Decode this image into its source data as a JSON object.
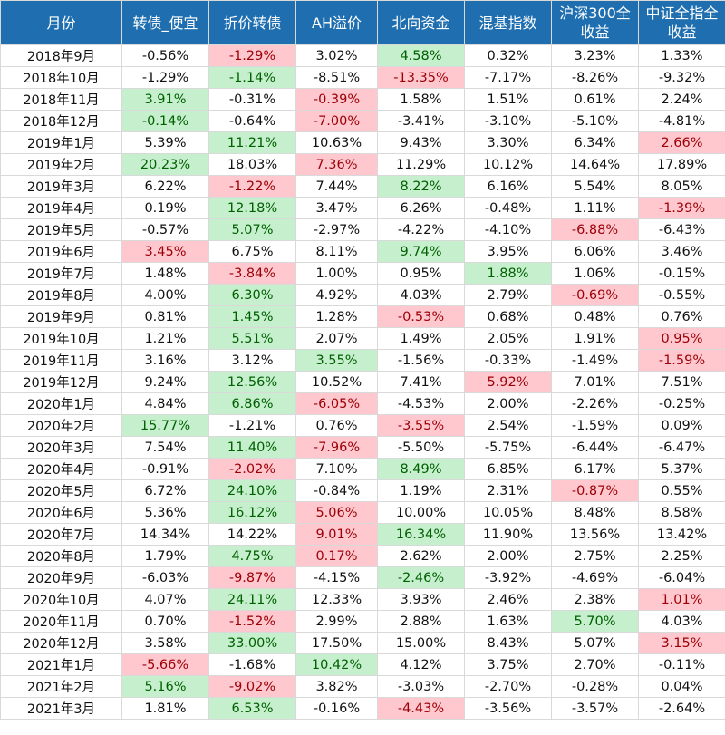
{
  "colors": {
    "header_bg": "#1f6fb0",
    "header_text": "#ffffff",
    "green_fill": "#c6efce",
    "green_text": "#006100",
    "red_fill": "#ffc7ce",
    "red_text": "#9c0006",
    "grid": "#d9d9d9"
  },
  "table": {
    "headers": [
      "月份",
      "转债_便宜",
      "折价转债",
      "AH溢价",
      "北向资金",
      "混基指数",
      "沪深300全收益",
      "中证全指全收益"
    ],
    "rows": [
      {
        "month": "2018年9月",
        "values": [
          "-0.56%",
          "-1.29%",
          "3.02%",
          "4.58%",
          "0.32%",
          "3.23%",
          "1.33%"
        ],
        "highlight": [
          "",
          "red",
          "",
          "green",
          "",
          "",
          ""
        ]
      },
      {
        "month": "2018年10月",
        "values": [
          "-1.29%",
          "-1.14%",
          "-8.51%",
          "-13.35%",
          "-7.17%",
          "-8.26%",
          "-9.32%"
        ],
        "highlight": [
          "",
          "green",
          "",
          "red",
          "",
          "",
          ""
        ]
      },
      {
        "month": "2018年11月",
        "values": [
          "3.91%",
          "-0.31%",
          "-0.39%",
          "1.58%",
          "1.51%",
          "0.61%",
          "2.24%"
        ],
        "highlight": [
          "green",
          "",
          "red",
          "",
          "",
          "",
          ""
        ]
      },
      {
        "month": "2018年12月",
        "values": [
          "-0.14%",
          "-0.64%",
          "-7.00%",
          "-3.41%",
          "-3.10%",
          "-5.10%",
          "-4.81%"
        ],
        "highlight": [
          "green",
          "",
          "red",
          "",
          "",
          "",
          ""
        ]
      },
      {
        "month": "2019年1月",
        "values": [
          "5.39%",
          "11.21%",
          "10.63%",
          "9.43%",
          "3.30%",
          "6.34%",
          "2.66%"
        ],
        "highlight": [
          "",
          "green",
          "",
          "",
          "",
          "",
          "red"
        ]
      },
      {
        "month": "2019年2月",
        "values": [
          "20.23%",
          "18.03%",
          "7.36%",
          "11.29%",
          "10.12%",
          "14.64%",
          "17.89%"
        ],
        "highlight": [
          "green",
          "",
          "red",
          "",
          "",
          "",
          ""
        ]
      },
      {
        "month": "2019年3月",
        "values": [
          "6.22%",
          "-1.22%",
          "7.44%",
          "8.22%",
          "6.16%",
          "5.54%",
          "8.05%"
        ],
        "highlight": [
          "",
          "red",
          "",
          "green",
          "",
          "",
          ""
        ]
      },
      {
        "month": "2019年4月",
        "values": [
          "0.19%",
          "12.18%",
          "3.47%",
          "6.26%",
          "-0.48%",
          "1.11%",
          "-1.39%"
        ],
        "highlight": [
          "",
          "green",
          "",
          "",
          "",
          "",
          "red"
        ]
      },
      {
        "month": "2019年5月",
        "values": [
          "-0.57%",
          "5.07%",
          "-2.97%",
          "-4.22%",
          "-4.10%",
          "-6.88%",
          "-6.43%"
        ],
        "highlight": [
          "",
          "green",
          "",
          "",
          "",
          "red",
          ""
        ]
      },
      {
        "month": "2019年6月",
        "values": [
          "3.45%",
          "6.75%",
          "8.11%",
          "9.74%",
          "3.95%",
          "6.06%",
          "3.46%"
        ],
        "highlight": [
          "red",
          "",
          "",
          "green",
          "",
          "",
          ""
        ]
      },
      {
        "month": "2019年7月",
        "values": [
          "1.48%",
          "-3.84%",
          "1.00%",
          "0.95%",
          "1.88%",
          "1.06%",
          "-0.15%"
        ],
        "highlight": [
          "",
          "red",
          "",
          "",
          "green",
          "",
          ""
        ]
      },
      {
        "month": "2019年8月",
        "values": [
          "4.00%",
          "6.30%",
          "4.92%",
          "4.03%",
          "2.79%",
          "-0.69%",
          "-0.55%"
        ],
        "highlight": [
          "",
          "green",
          "",
          "",
          "",
          "red",
          ""
        ]
      },
      {
        "month": "2019年9月",
        "values": [
          "0.81%",
          "1.45%",
          "1.28%",
          "-0.53%",
          "0.68%",
          "0.48%",
          "0.76%"
        ],
        "highlight": [
          "",
          "green",
          "",
          "red",
          "",
          "",
          ""
        ]
      },
      {
        "month": "2019年10月",
        "values": [
          "1.21%",
          "5.51%",
          "2.07%",
          "1.49%",
          "2.05%",
          "1.91%",
          "0.95%"
        ],
        "highlight": [
          "",
          "green",
          "",
          "",
          "",
          "",
          "red"
        ]
      },
      {
        "month": "2019年11月",
        "values": [
          "3.16%",
          "3.12%",
          "3.55%",
          "-1.56%",
          "-0.33%",
          "-1.49%",
          "-1.59%"
        ],
        "highlight": [
          "",
          "",
          "green",
          "",
          "",
          "",
          "red"
        ]
      },
      {
        "month": "2019年12月",
        "values": [
          "9.24%",
          "12.56%",
          "10.52%",
          "7.41%",
          "5.92%",
          "7.01%",
          "7.51%"
        ],
        "highlight": [
          "",
          "green",
          "",
          "",
          "red",
          "",
          ""
        ]
      },
      {
        "month": "2020年1月",
        "values": [
          "4.84%",
          "6.86%",
          "-6.05%",
          "-4.53%",
          "2.00%",
          "-2.26%",
          "-0.25%"
        ],
        "highlight": [
          "",
          "green",
          "red",
          "",
          "",
          "",
          ""
        ]
      },
      {
        "month": "2020年2月",
        "values": [
          "15.77%",
          "-1.21%",
          "0.76%",
          "-3.55%",
          "2.54%",
          "-1.59%",
          "0.09%"
        ],
        "highlight": [
          "green",
          "",
          "",
          "red",
          "",
          "",
          ""
        ]
      },
      {
        "month": "2020年3月",
        "values": [
          "7.54%",
          "11.40%",
          "-7.96%",
          "-5.50%",
          "-5.75%",
          "-6.44%",
          "-6.47%"
        ],
        "highlight": [
          "",
          "green",
          "red",
          "",
          "",
          "",
          ""
        ]
      },
      {
        "month": "2020年4月",
        "values": [
          "-0.91%",
          "-2.02%",
          "7.10%",
          "8.49%",
          "6.85%",
          "6.17%",
          "5.37%"
        ],
        "highlight": [
          "",
          "red",
          "",
          "green",
          "",
          "",
          ""
        ]
      },
      {
        "month": "2020年5月",
        "values": [
          "6.72%",
          "24.10%",
          "-0.84%",
          "1.19%",
          "2.31%",
          "-0.87%",
          "0.55%"
        ],
        "highlight": [
          "",
          "green",
          "",
          "",
          "",
          "red",
          ""
        ]
      },
      {
        "month": "2020年6月",
        "values": [
          "5.36%",
          "16.12%",
          "5.06%",
          "10.00%",
          "10.05%",
          "8.48%",
          "8.58%"
        ],
        "highlight": [
          "",
          "green",
          "red",
          "",
          "",
          "",
          ""
        ]
      },
      {
        "month": "2020年7月",
        "values": [
          "14.34%",
          "14.22%",
          "9.01%",
          "16.34%",
          "11.90%",
          "13.56%",
          "13.42%"
        ],
        "highlight": [
          "",
          "",
          "red",
          "green",
          "",
          "",
          ""
        ]
      },
      {
        "month": "2020年8月",
        "values": [
          "1.79%",
          "4.75%",
          "0.17%",
          "2.62%",
          "2.00%",
          "2.75%",
          "2.25%"
        ],
        "highlight": [
          "",
          "green",
          "red",
          "",
          "",
          "",
          ""
        ]
      },
      {
        "month": "2020年9月",
        "values": [
          "-6.03%",
          "-9.87%",
          "-4.15%",
          "-2.46%",
          "-3.92%",
          "-4.69%",
          "-6.04%"
        ],
        "highlight": [
          "",
          "red",
          "",
          "green",
          "",
          "",
          ""
        ]
      },
      {
        "month": "2020年10月",
        "values": [
          "4.07%",
          "24.11%",
          "12.33%",
          "3.93%",
          "2.46%",
          "2.38%",
          "1.01%"
        ],
        "highlight": [
          "",
          "green",
          "",
          "",
          "",
          "",
          "red"
        ]
      },
      {
        "month": "2020年11月",
        "values": [
          "0.70%",
          "-1.52%",
          "2.99%",
          "2.88%",
          "1.63%",
          "5.70%",
          "4.03%"
        ],
        "highlight": [
          "",
          "red",
          "",
          "",
          "",
          "green",
          ""
        ]
      },
      {
        "month": "2020年12月",
        "values": [
          "3.58%",
          "33.00%",
          "17.50%",
          "15.00%",
          "8.43%",
          "5.07%",
          "3.15%"
        ],
        "highlight": [
          "",
          "green",
          "",
          "",
          "",
          "",
          "red"
        ]
      },
      {
        "month": "2021年1月",
        "values": [
          "-5.66%",
          "-1.68%",
          "10.42%",
          "4.12%",
          "3.75%",
          "2.70%",
          "-0.11%"
        ],
        "highlight": [
          "red",
          "",
          "green",
          "",
          "",
          "",
          ""
        ]
      },
      {
        "month": "2021年2月",
        "values": [
          "5.16%",
          "-9.02%",
          "3.82%",
          "-3.03%",
          "-2.70%",
          "-0.28%",
          "0.04%"
        ],
        "highlight": [
          "green",
          "red",
          "",
          "",
          "",
          "",
          ""
        ]
      },
      {
        "month": "2021年3月",
        "values": [
          "1.81%",
          "6.53%",
          "-0.16%",
          "-4.43%",
          "-3.56%",
          "-3.57%",
          "-2.64%"
        ],
        "highlight": [
          "",
          "green",
          "",
          "red",
          "",
          "",
          ""
        ]
      }
    ]
  }
}
